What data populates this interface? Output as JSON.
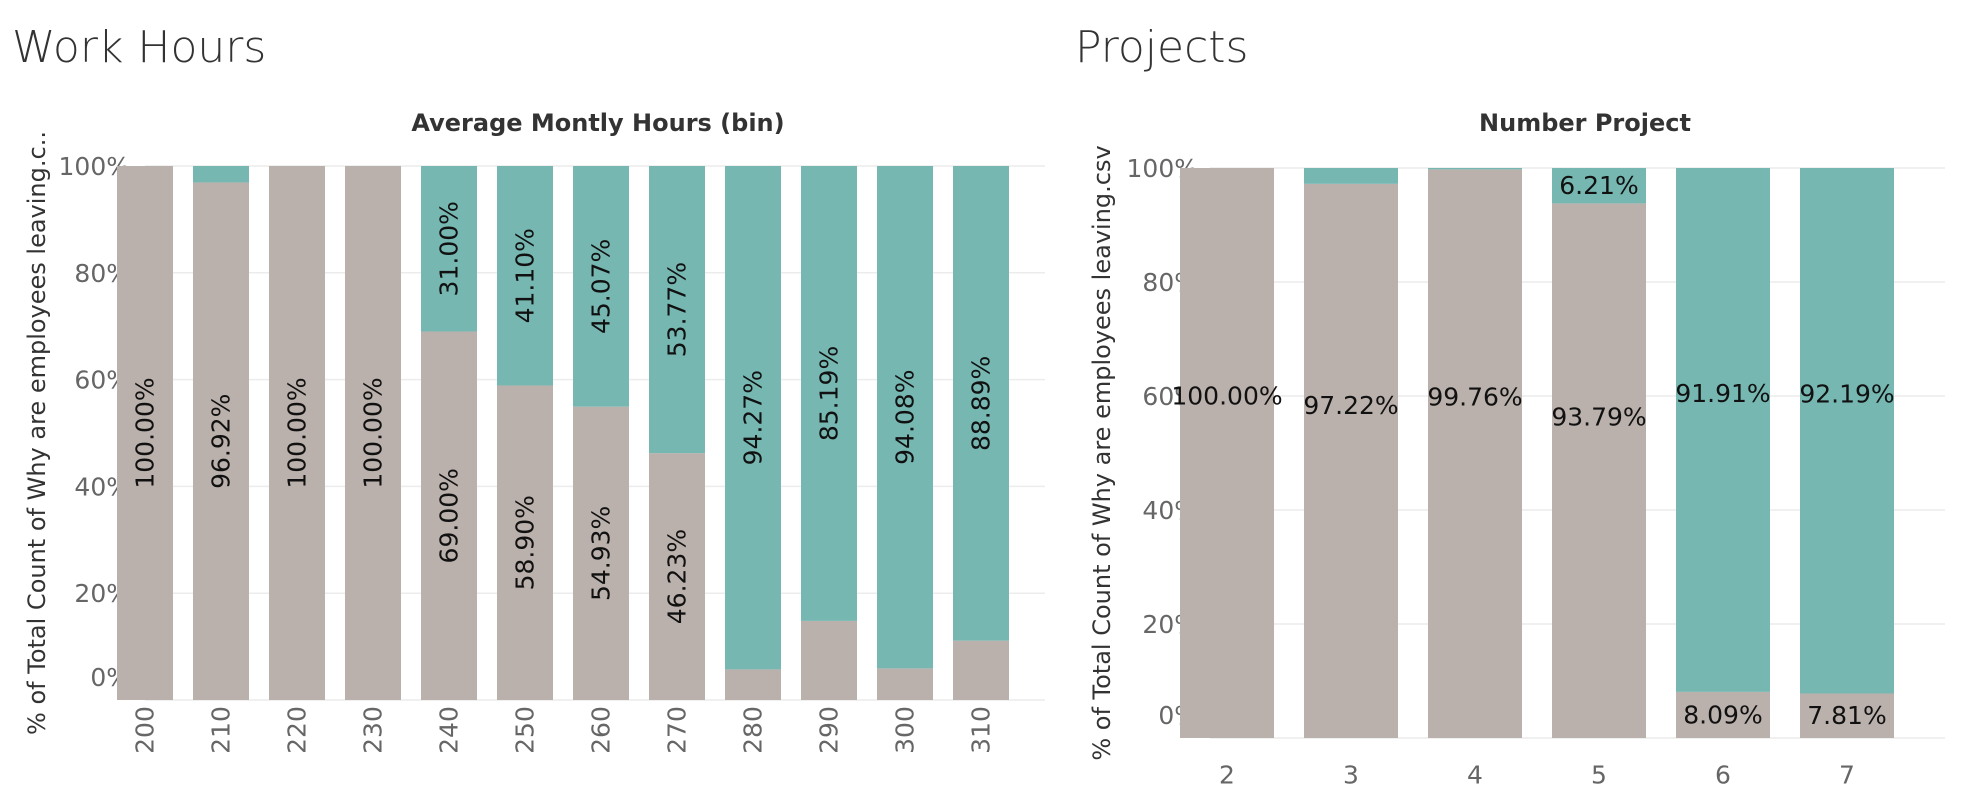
{
  "panels": {
    "left_title": "Work Hours",
    "right_title": "Projects"
  },
  "colors": {
    "stay": "#bab0ac",
    "left": "#76b7b2"
  },
  "chart_data": [
    {
      "type": "bar",
      "stacked": true,
      "orientation": "vertical",
      "title": "Work Hours",
      "column_title": "Average Montly Hours (bin)",
      "ylabel": "% of Total Count of Why are employees leaving.c..",
      "ylim": [
        0,
        100
      ],
      "yticks": [
        "0%",
        "20%",
        "40%",
        "60%",
        "80%",
        "100%"
      ],
      "categories": [
        "200",
        "210",
        "220",
        "230",
        "240",
        "250",
        "260",
        "270",
        "280",
        "290",
        "300",
        "310"
      ],
      "series": [
        {
          "values": [
            100.0,
            96.92,
            100.0,
            100.0,
            69.0,
            58.9,
            54.93,
            46.23,
            5.73,
            14.81,
            5.92,
            11.11
          ],
          "labels": [
            "100.00%",
            "96.92%",
            "100.00%",
            "100.00%",
            "69.00%",
            "58.90%",
            "54.93%",
            "46.23%",
            "",
            "",
            "",
            ""
          ]
        },
        {
          "values": [
            0.0,
            3.08,
            0.0,
            0.0,
            31.0,
            41.1,
            45.07,
            53.77,
            94.27,
            85.19,
            94.08,
            88.89
          ],
          "labels": [
            "",
            "",
            "",
            "",
            "31.00%",
            "41.10%",
            "45.07%",
            "53.77%",
            "94.27%",
            "85.19%",
            "94.08%",
            "88.89%"
          ]
        }
      ],
      "grid": true,
      "legend": "none"
    },
    {
      "type": "bar",
      "stacked": true,
      "orientation": "vertical",
      "title": "Projects",
      "column_title": "Number Project",
      "ylabel": "% of Total Count of Why are employees leaving.csv",
      "ylim": [
        0,
        100
      ],
      "yticks": [
        "0%",
        "20%",
        "40%",
        "60%",
        "80%",
        "100%"
      ],
      "categories": [
        "2",
        "3",
        "4",
        "5",
        "6",
        "7"
      ],
      "series": [
        {
          "values": [
            100.0,
            97.22,
            99.76,
            93.79,
            8.09,
            7.81
          ],
          "labels": [
            "100.00%",
            "97.22%",
            "99.76%",
            "93.79%",
            "8.09%",
            "7.81%"
          ]
        },
        {
          "values": [
            0.0,
            2.78,
            0.24,
            6.21,
            91.91,
            92.19
          ],
          "labels": [
            "",
            "",
            "",
            "6.21%",
            "91.91%",
            "92.19%"
          ]
        }
      ],
      "grid": true,
      "legend": "none"
    }
  ]
}
